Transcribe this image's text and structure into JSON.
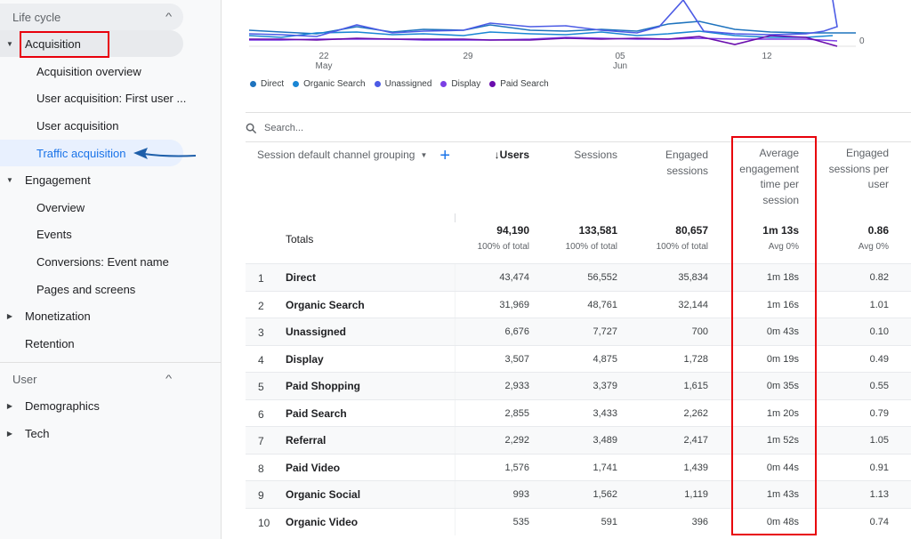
{
  "sidebar": {
    "lifecycle_label": "Life cycle",
    "user_label": "User",
    "items": [
      {
        "label": "Acquisition"
      },
      {
        "label": "Acquisition overview"
      },
      {
        "label": "User acquisition: First user ..."
      },
      {
        "label": "User acquisition"
      },
      {
        "label": "Traffic acquisition"
      },
      {
        "label": "Engagement"
      },
      {
        "label": "Overview"
      },
      {
        "label": "Events"
      },
      {
        "label": "Conversions: Event name"
      },
      {
        "label": "Pages and screens"
      },
      {
        "label": "Monetization"
      },
      {
        "label": "Retention"
      },
      {
        "label": "Demographics"
      },
      {
        "label": "Tech"
      }
    ]
  },
  "chart": {
    "x_ticks": [
      {
        "day": "22",
        "month": "May"
      },
      {
        "day": "29",
        "month": ""
      },
      {
        "day": "05",
        "month": "Jun"
      },
      {
        "day": "12",
        "month": ""
      }
    ],
    "y_tick": "0",
    "legend": [
      {
        "name": "Direct",
        "color": "#1e73be"
      },
      {
        "name": "Organic Search",
        "color": "#1a86d4"
      },
      {
        "name": "Unassigned",
        "color": "#4c5be5"
      },
      {
        "name": "Display",
        "color": "#7b3fe4"
      },
      {
        "name": "Paid Search",
        "color": "#6a0dad"
      }
    ]
  },
  "table": {
    "search_placeholder": "Search...",
    "headers": {
      "dimension": "Session default channel grouping",
      "users": "↓Users",
      "sessions": "Sessions",
      "engaged_1": "Engaged",
      "engaged_2": "sessions",
      "avg_1": "Average",
      "avg_2": "engagement",
      "avg_3": "time per",
      "avg_4": "session",
      "eps_1": "Engaged",
      "eps_2": "sessions per",
      "eps_3": "user"
    },
    "totals": {
      "label": "Totals",
      "users": "94,190",
      "users_sub": "100% of total",
      "sessions": "133,581",
      "sessions_sub": "100% of total",
      "engaged": "80,657",
      "engaged_sub": "100% of total",
      "avg_time": "1m 13s",
      "avg_time_sub": "Avg 0%",
      "eps": "0.86",
      "eps_sub": "Avg 0%"
    },
    "rows": [
      {
        "idx": "1",
        "name": "Direct",
        "users": "43,474",
        "sessions": "56,552",
        "engaged": "35,834",
        "avg_time": "1m 18s",
        "eps": "0.82"
      },
      {
        "idx": "2",
        "name": "Organic Search",
        "users": "31,969",
        "sessions": "48,761",
        "engaged": "32,144",
        "avg_time": "1m 16s",
        "eps": "1.01"
      },
      {
        "idx": "3",
        "name": "Unassigned",
        "users": "6,676",
        "sessions": "7,727",
        "engaged": "700",
        "avg_time": "0m 43s",
        "eps": "0.10"
      },
      {
        "idx": "4",
        "name": "Display",
        "users": "3,507",
        "sessions": "4,875",
        "engaged": "1,728",
        "avg_time": "0m 19s",
        "eps": "0.49"
      },
      {
        "idx": "5",
        "name": "Paid Shopping",
        "users": "2,933",
        "sessions": "3,379",
        "engaged": "1,615",
        "avg_time": "0m 35s",
        "eps": "0.55"
      },
      {
        "idx": "6",
        "name": "Paid Search",
        "users": "2,855",
        "sessions": "3,433",
        "engaged": "2,262",
        "avg_time": "1m 20s",
        "eps": "0.79"
      },
      {
        "idx": "7",
        "name": "Referral",
        "users": "2,292",
        "sessions": "3,489",
        "engaged": "2,417",
        "avg_time": "1m 52s",
        "eps": "1.05"
      },
      {
        "idx": "8",
        "name": "Paid Video",
        "users": "1,576",
        "sessions": "1,741",
        "engaged": "1,439",
        "avg_time": "0m 44s",
        "eps": "0.91"
      },
      {
        "idx": "9",
        "name": "Organic Social",
        "users": "993",
        "sessions": "1,562",
        "engaged": "1,119",
        "avg_time": "1m 43s",
        "eps": "1.13"
      },
      {
        "idx": "10",
        "name": "Organic Video",
        "users": "535",
        "sessions": "591",
        "engaged": "396",
        "avg_time": "0m 48s",
        "eps": "0.74"
      }
    ]
  }
}
